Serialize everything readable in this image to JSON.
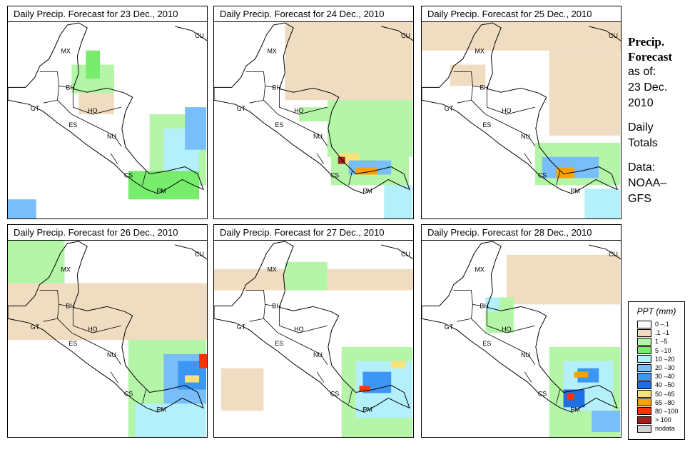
{
  "panels": [
    {
      "title": "Daily Precip. Forecast for  23 Dec., 2010"
    },
    {
      "title": "Daily Precip. Forecast for  24 Dec., 2010"
    },
    {
      "title": "Daily Precip. Forecast for  25 Dec., 2010"
    },
    {
      "title": "Daily Precip. Forecast for  26 Dec., 2010"
    },
    {
      "title": "Daily Precip. Forecast for  27 Dec., 2010"
    },
    {
      "title": "Daily Precip. Forecast for  28 Dec., 2010"
    }
  ],
  "map_labels": [
    "MX",
    "BH",
    "GT",
    "HO",
    "ES",
    "NU",
    "CS",
    "PM",
    "CU"
  ],
  "side": {
    "title1": "Precip.",
    "title2": "Forecast",
    "asof": "as of:",
    "date1": "23 Dec.",
    "date2": "2010",
    "daily": "Daily",
    "totals": "Totals",
    "data": "Data:",
    "src1": "NOAA–",
    "src2": "GFS"
  },
  "legend": {
    "title": "PPT (mm)",
    "items": [
      {
        "label": "0 –.1",
        "color": "#ffffff"
      },
      {
        "label": ".1 –1",
        "color": "#f0dcc0"
      },
      {
        "label": "1 –5",
        "color": "#b4f5a8"
      },
      {
        "label": "5 –10",
        "color": "#78ec6c"
      },
      {
        "label": "10 –20",
        "color": "#b4f0fa"
      },
      {
        "label": "20 –30",
        "color": "#78bef8"
      },
      {
        "label": "30 –40",
        "color": "#3c96f4"
      },
      {
        "label": "40 –50",
        "color": "#1e6ee6"
      },
      {
        "label": "50 –65",
        "color": "#fae178"
      },
      {
        "label": "65 –80",
        "color": "#faa000"
      },
      {
        "label": "80 –100",
        "color": "#ff3200"
      },
      {
        "label": "> 100",
        "color": "#a01e1e"
      },
      {
        "label": "nodata",
        "color": "#d2d2d2"
      }
    ]
  }
}
